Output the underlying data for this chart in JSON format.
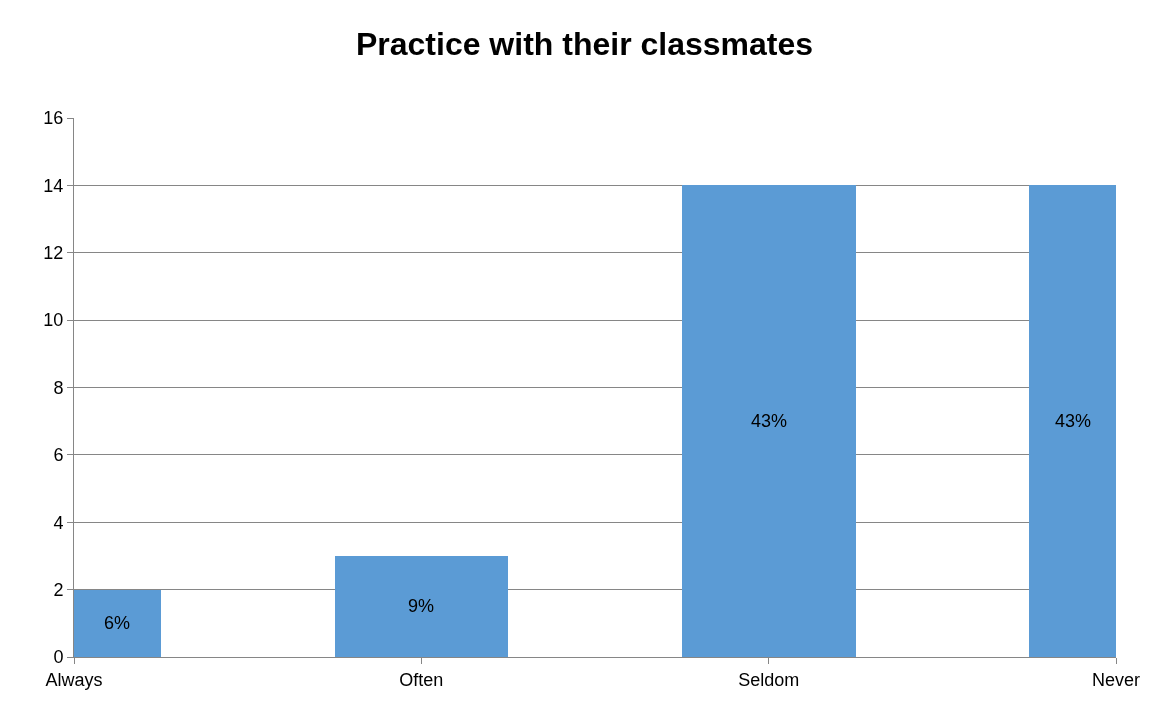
{
  "chart_data": {
    "type": "bar",
    "title": "Practice with their classmates",
    "categories": [
      "Always",
      "Often",
      "Seldom",
      "Never"
    ],
    "values": [
      2,
      3,
      14,
      14
    ],
    "annotations": [
      "6%",
      "9%",
      "43%",
      "43%"
    ],
    "color": "#5b9bd5",
    "ylim": [
      0,
      16
    ],
    "yticks": [
      0,
      2,
      4,
      6,
      8,
      10,
      12,
      14,
      16
    ],
    "grid": "y",
    "legend": false
  }
}
